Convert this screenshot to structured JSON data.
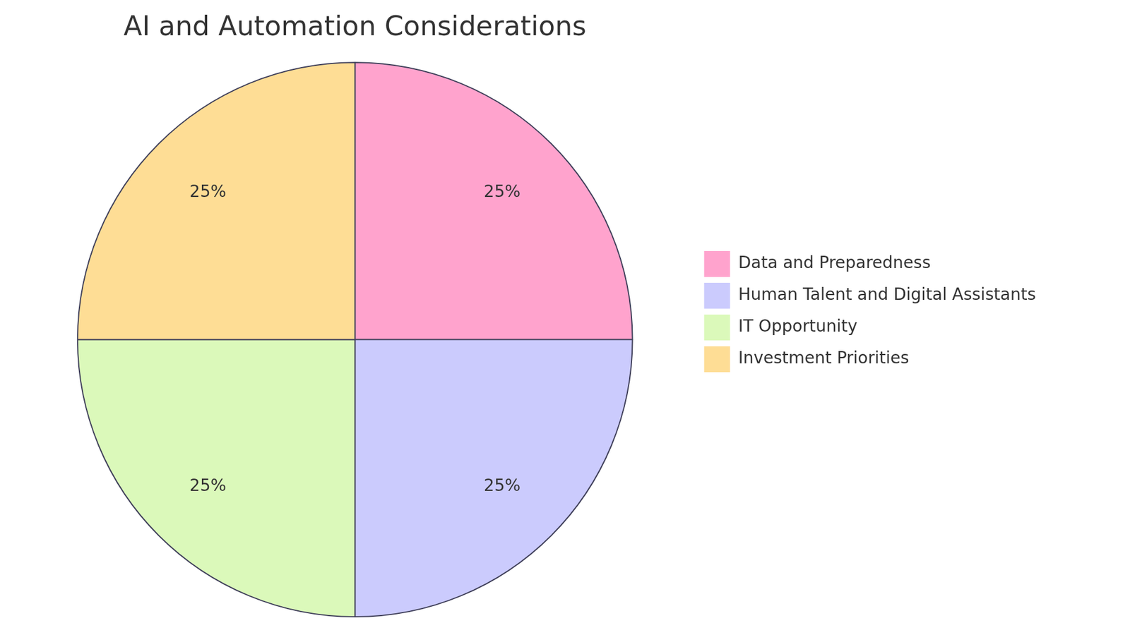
{
  "chart_data": {
    "type": "pie",
    "title": "AI and Automation Considerations",
    "categories": [
      "Data and Preparedness",
      "Human Talent and Digital Assistants",
      "IT Opportunity",
      "Investment Priorities"
    ],
    "values": [
      25,
      25,
      25,
      25
    ],
    "value_labels": [
      "25%",
      "25%",
      "25%",
      "25%"
    ],
    "colors": [
      "#ffa3cd",
      "#cbcbfd",
      "#dbf9ba",
      "#fedd95"
    ],
    "data_labels": true,
    "legend": "right"
  }
}
